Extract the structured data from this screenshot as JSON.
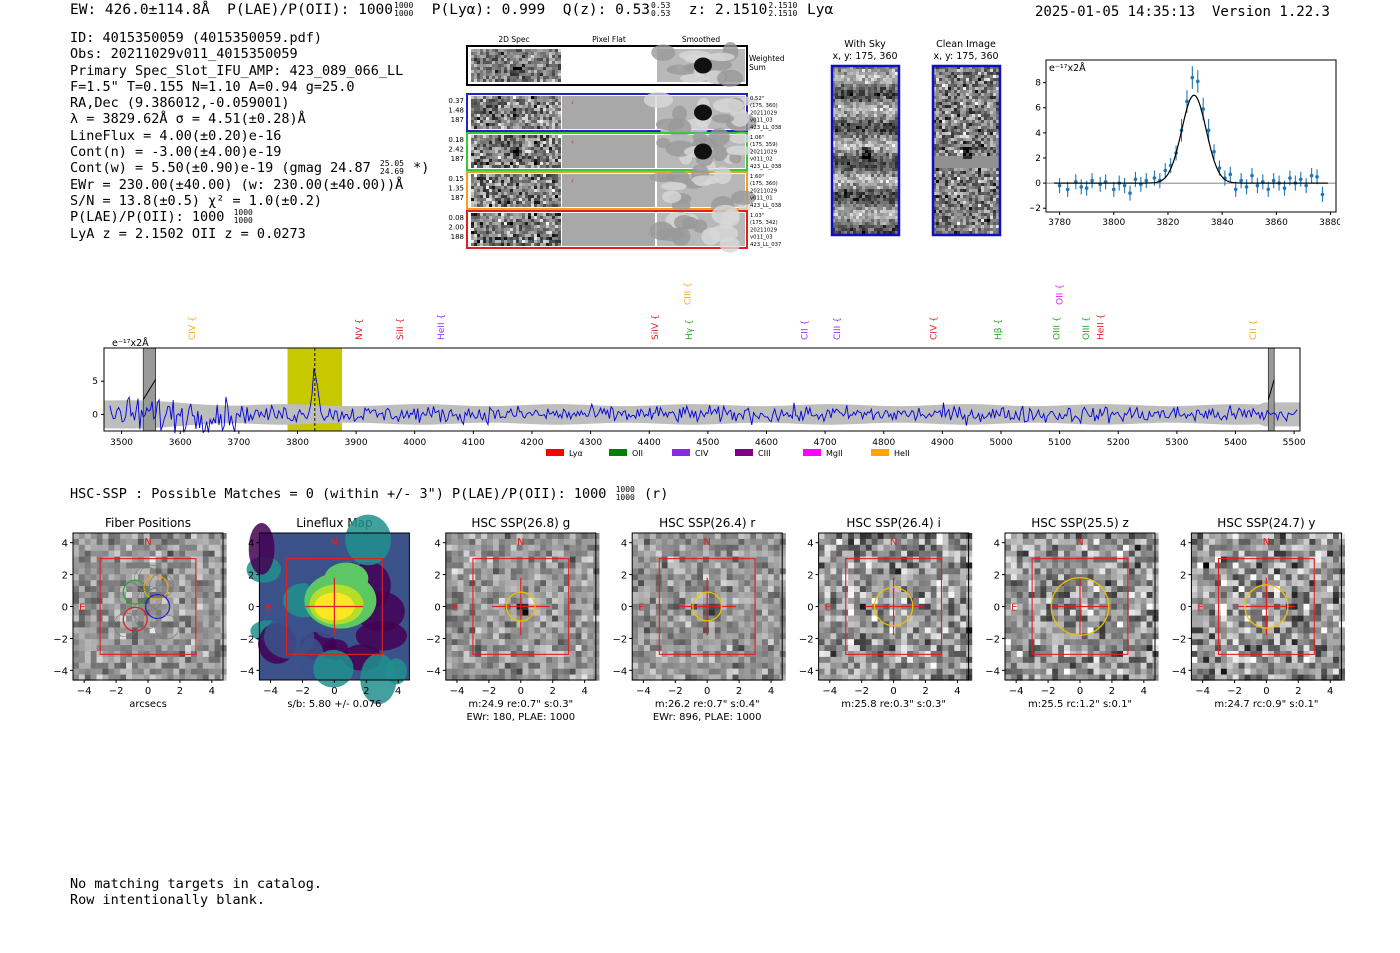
{
  "header": {
    "ew": "EW: 426.0±114.8Å",
    "plae_label": "P(LAE)/P(OII): 1000",
    "plae_hi": "1000",
    "plae_lo": "1000",
    "plya": "P(Lyα): 0.999",
    "qz_label": "Q(z): 0.53",
    "qz_hi": "0.53",
    "qz_lo": "0.53",
    "z_label": "z: 2.1510",
    "z_hi": "2.1510",
    "z_lo": "2.1510",
    "line": "Lyα",
    "datetime": "2025-01-05 14:35:13",
    "version": "Version 1.22.3"
  },
  "info": {
    "id": "ID: 4015350059 (4015350059.pdf)",
    "obs": "Obs: 20211029v011_4015350059",
    "primary": "Primary Spec_Slot_IFU_AMP: 423_089_066_LL",
    "params": "F=1.5\"  T=0.155  N=1.10  A=0.94  g=25.0",
    "radec": "RA,Dec (9.386012,-0.059001)",
    "lambda": "λ = 3829.62Å   σ = 4.51(±0.28)Å",
    "lineflux": "LineFlux = 4.00(±0.20)e-16",
    "contn": "Cont(n) = -3.00(±4.00)e-19",
    "contw": "Cont(w) = 5.50(±0.90)e-19 (gmag 24.87",
    "contw_hi": "25.05",
    "contw_lo": "24.69",
    "contw_end": " *)",
    "ewr": "EWr = 230.00(±40.00) (w: 230.00(±40.00))Å",
    "sn": "S/N = 13.8(±0.5)  χ² = 1.0(±0.2)",
    "plae": "P(LAE)/P(OII): 1000",
    "plae_hi": "1000",
    "plae_lo": "1000",
    "lya_z": "LyA z = 2.1502   OII z = 0.0273"
  },
  "cutouts": {
    "col_headers": [
      "2D Spec",
      "Pixel Flat",
      "Smoothed"
    ],
    "weighted_sum": [
      "Weighted",
      "Sum"
    ],
    "rows": [
      {
        "left": [
          "0.37",
          "1.48",
          "187"
        ],
        "right": [
          "0.52\"",
          "(175, 360)",
          "20211029",
          "v011_03",
          "423_LL_038"
        ],
        "color": "#2222cc"
      },
      {
        "left": [
          "0.18",
          "2.42",
          "187"
        ],
        "right": [
          "1.06\"",
          "(175, 359)",
          "20211029",
          "v011_02",
          "423_LL_038"
        ],
        "color": "#33cc33"
      },
      {
        "left": [
          "0.15",
          "1.35",
          "187"
        ],
        "right": [
          "1.60\"",
          "(175, 360)",
          "20211029",
          "v011_01",
          "423_LL_038"
        ],
        "color": "#f0a020"
      },
      {
        "left": [
          "0.08",
          "2.00",
          "188"
        ],
        "right": [
          "1.03\"",
          "(175, 342)",
          "20211029",
          "v011_03",
          "423_LL_037"
        ],
        "color": "#e02020"
      }
    ],
    "with_sky_title": [
      "With Sky",
      "x, y: 175, 360"
    ],
    "clean_title": [
      "Clean Image",
      "x, y: 175, 360"
    ]
  },
  "fit_plot": {
    "unit_label": "e⁻¹⁷x2Å",
    "xlim": [
      3775,
      3882
    ],
    "ylim": [
      -2.3,
      9.8
    ],
    "xticks": [
      "3780",
      "3800",
      "3820",
      "3840",
      "3860",
      "3880"
    ],
    "yticks": [
      "−2",
      "0",
      "2",
      "4",
      "6",
      "8"
    ],
    "gauss": {
      "amp": 7.0,
      "mu": 3829.6,
      "sigma": 4.5
    },
    "points": [
      [
        3780,
        -0.2
      ],
      [
        3783,
        -0.5
      ],
      [
        3786,
        0.1
      ],
      [
        3788,
        -0.3
      ],
      [
        3790,
        -0.4
      ],
      [
        3792,
        0.2
      ],
      [
        3795,
        -0.1
      ],
      [
        3797,
        0.1
      ],
      [
        3800,
        -0.5
      ],
      [
        3802,
        0.0
      ],
      [
        3804,
        -0.2
      ],
      [
        3806,
        -0.8
      ],
      [
        3808,
        0.3
      ],
      [
        3810,
        -0.1
      ],
      [
        3812,
        0.2
      ],
      [
        3815,
        0.4
      ],
      [
        3817,
        0.2
      ],
      [
        3819,
        1.0
      ],
      [
        3821,
        1.4
      ],
      [
        3823,
        2.4
      ],
      [
        3825,
        4.2
      ],
      [
        3827,
        6.5
      ],
      [
        3829,
        8.4
      ],
      [
        3831,
        8.1
      ],
      [
        3833,
        5.9
      ],
      [
        3835,
        4.2
      ],
      [
        3837,
        2.5
      ],
      [
        3839,
        1.2
      ],
      [
        3841,
        0.4
      ],
      [
        3843,
        0.7
      ],
      [
        3845,
        -0.5
      ],
      [
        3847,
        0.2
      ],
      [
        3849,
        -0.3
      ],
      [
        3851,
        0.6
      ],
      [
        3853,
        -0.2
      ],
      [
        3855,
        0.1
      ],
      [
        3857,
        -0.5
      ],
      [
        3859,
        0.2
      ],
      [
        3861,
        0.0
      ],
      [
        3863,
        -0.4
      ],
      [
        3865,
        0.4
      ],
      [
        3867,
        0.0
      ],
      [
        3869,
        0.3
      ],
      [
        3871,
        -0.2
      ],
      [
        3873,
        0.6
      ],
      [
        3875,
        0.5
      ],
      [
        3877,
        -0.9
      ]
    ]
  },
  "chart_data": {
    "type": "line",
    "title": "",
    "unit_label": "e⁻¹⁷x2Å",
    "xlim": [
      3470,
      5510
    ],
    "ylim": [
      -2.5,
      10
    ],
    "xticks": [
      "3500",
      "3600",
      "3700",
      "3800",
      "3900",
      "4000",
      "4100",
      "4200",
      "4300",
      "4400",
      "4500",
      "4600",
      "4700",
      "4800",
      "4900",
      "5000",
      "5100",
      "5200",
      "5300",
      "5400",
      "5500"
    ],
    "yticks": [
      "0",
      "5"
    ],
    "detected_line_wavelength": 3829.6,
    "highlight_range": [
      3783,
      3876
    ],
    "masked_ranges": [
      [
        3537,
        3558
      ],
      [
        5456,
        5466
      ]
    ],
    "lines": [
      {
        "name": "CIV",
        "wave": 3620,
        "color": "#f5a623"
      },
      {
        "name": "NV",
        "wave": 3905,
        "color": "#e02020"
      },
      {
        "name": "SiII",
        "wave": 3975,
        "color": "#e02020"
      },
      {
        "name": "HeII",
        "wave": 4045,
        "color": "#9b30ff"
      },
      {
        "name": "SiIV",
        "wave": 4410,
        "color": "#e02020"
      },
      {
        "name": "CIII",
        "wave": 4465,
        "color": "#f5a623",
        "high": true
      },
      {
        "name": "Hγ",
        "wave": 4468,
        "color": "#22aa22"
      },
      {
        "name": "CII",
        "wave": 4665,
        "color": "#9b30ff"
      },
      {
        "name": "CIII",
        "wave": 4720,
        "color": "#9b30ff"
      },
      {
        "name": "CIV",
        "wave": 4885,
        "color": "#e02020"
      },
      {
        "name": "Hβ",
        "wave": 4995,
        "color": "#22aa22"
      },
      {
        "name": "OII",
        "wave": 5100,
        "color": "#ee22ee",
        "high": true
      },
      {
        "name": "OIII",
        "wave": 5095,
        "color": "#22aa22"
      },
      {
        "name": "OIII",
        "wave": 5145,
        "color": "#22aa22"
      },
      {
        "name": "HeII",
        "wave": 5170,
        "color": "#e02020"
      },
      {
        "name": "CII",
        "wave": 5430,
        "color": "#f5a623"
      }
    ],
    "legend": [
      {
        "label": "Lyα",
        "color": "#ff0000"
      },
      {
        "label": "OII",
        "color": "#008000"
      },
      {
        "label": "CIV",
        "color": "#8a2be2"
      },
      {
        "label": "CIII",
        "color": "#800080"
      },
      {
        "label": "MgII",
        "color": "#ff00ff"
      },
      {
        "label": "HeII",
        "color": "#ffa500"
      }
    ]
  },
  "hsc": {
    "summary": "HSC-SSP : Possible Matches = 0 (within +/- 3\")  P(LAE)/P(OII): 1000",
    "summary_hi": "1000",
    "summary_lo": "1000",
    "summary_end": " (r)",
    "axis_ticks": [
      "−4",
      "−2",
      "0",
      "2",
      "4"
    ],
    "y_ticks": [
      "4",
      "2",
      "0",
      "−2",
      "−4"
    ],
    "north": "N",
    "east": "E",
    "panels": [
      {
        "title": "Fiber Positions",
        "captions": [
          "arcsecs"
        ],
        "kind": "fiber"
      },
      {
        "title": "Lineflux Map",
        "captions": [
          "s/b: 5.80 +/- 0.076"
        ],
        "kind": "flux"
      },
      {
        "title": "HSC SSP(26.8) g",
        "captions": [
          "m:24.9  re:0.7\"  s:0.3\"",
          "EWr: 180, PLAE: 1000"
        ],
        "kind": "img",
        "circle": 0.6,
        "blob": true
      },
      {
        "title": "HSC SSP(26.4) r",
        "captions": [
          "m:26.2  re:0.7\"  s:0.4\"",
          "EWr: 896, PLAE: 1000"
        ],
        "kind": "img",
        "circle": 0.6,
        "blob": true
      },
      {
        "title": "HSC SSP(26.4) i",
        "captions": [
          "m:25.8  re:0.3\"  s:0.3\""
        ],
        "kind": "img",
        "circle": 0.8,
        "blob": false
      },
      {
        "title": "HSC SSP(25.5) z",
        "captions": [
          "m:25.5  rc:1.2\"  s:0.1\""
        ],
        "kind": "img",
        "circle": 1.2,
        "blob": false
      },
      {
        "title": "HSC SSP(24.7) y",
        "captions": [
          "m:24.7  rc:0.9\"  s:0.1\""
        ],
        "kind": "img",
        "circle": 0.9,
        "blob": false
      }
    ]
  },
  "footer": {
    "line1": "No matching targets in catalog.",
    "line2": "Row intentionally blank."
  }
}
